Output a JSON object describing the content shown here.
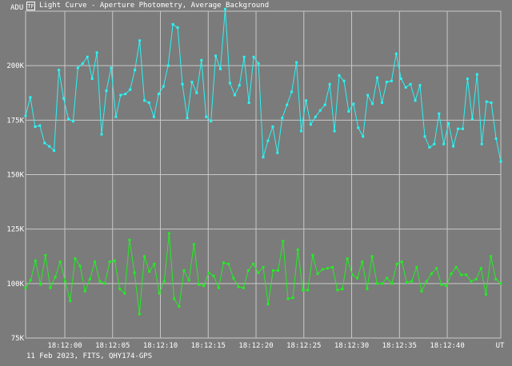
{
  "window": {
    "title": "Light Curve - Aperture Photometry, Average Background",
    "icon": "app-icon"
  },
  "footer": {
    "caption": "11 Feb 2023, FITS, QHY174-GPS"
  },
  "colors": {
    "background": "#7b7b7b",
    "grid": "#c8c8c8",
    "series1": "#29f5f5",
    "series2": "#22ee22"
  },
  "chart_data": {
    "type": "line",
    "ylabel": "ADU",
    "xlabel": "UT",
    "ylim": [
      75000,
      225000
    ],
    "y_ticks": [
      {
        "value": 75000,
        "label": "75K"
      },
      {
        "value": 100000,
        "label": "100K"
      },
      {
        "value": 125000,
        "label": "125K"
      },
      {
        "value": 150000,
        "label": "150K"
      },
      {
        "value": 175000,
        "label": "175K"
      },
      {
        "value": 200000,
        "label": "200K"
      }
    ],
    "xlim": [
      "18:11:55.9",
      "18:12:45.6"
    ],
    "x_ticks": [
      "18:12:00",
      "18:12:05",
      "18:12:10",
      "18:12:15",
      "18:12:20",
      "18:12:25",
      "18:12:30",
      "18:12:35",
      "18:12:40"
    ],
    "grid": true,
    "legend": "none",
    "series": [
      {
        "values": [
          177000,
          185500,
          172000,
          172500,
          164500,
          163000,
          161000,
          198000,
          185000,
          175500,
          174500,
          199000,
          201000,
          204000,
          194000,
          206000,
          168500,
          188500,
          199000,
          176500,
          186500,
          187000,
          189000,
          198000,
          211500,
          184000,
          183000,
          176500,
          187000,
          190500,
          200000,
          219000,
          217500,
          191500,
          176000,
          192500,
          187500,
          202500,
          176500,
          174500,
          204500,
          198500,
          226000,
          192000,
          186500,
          191000,
          204000,
          183000,
          204000,
          201000,
          158000,
          165500,
          172000,
          160000,
          176000,
          182000,
          188000,
          201500,
          170000,
          184000,
          173000,
          176500,
          179500,
          182000,
          191500,
          170000,
          195500,
          193000,
          179000,
          182500,
          171500,
          167500,
          186500,
          182500,
          194500,
          183000,
          192500,
          193000,
          205500,
          194000,
          190000,
          191500,
          184000,
          191000,
          167500,
          162500,
          164000,
          178000,
          164000,
          173500,
          163000,
          171000,
          171000,
          194000,
          175500,
          196000,
          164000,
          183500,
          183000,
          166500,
          156000
        ]
      },
      {
        "values": [
          98000,
          101500,
          110500,
          99500,
          113000,
          98000,
          103000,
          110000,
          101000,
          92000,
          111500,
          108000,
          96500,
          102000,
          110000,
          101000,
          100000,
          110000,
          110500,
          97500,
          95500,
          120000,
          105000,
          86000,
          112500,
          105500,
          109000,
          95500,
          101000,
          123000,
          93000,
          89500,
          106000,
          101500,
          118000,
          99500,
          99000,
          105000,
          103500,
          98000,
          109500,
          109000,
          102500,
          98500,
          98000,
          106000,
          109000,
          105000,
          107500,
          90500,
          106000,
          106000,
          119500,
          93000,
          93500,
          115500,
          97000,
          97000,
          113000,
          104500,
          106500,
          107000,
          107500,
          97000,
          97500,
          111500,
          104000,
          102500,
          110000,
          97500,
          112500,
          100000,
          100000,
          102500,
          100000,
          109000,
          110000,
          100500,
          101000,
          107500,
          96500,
          101000,
          104500,
          107000,
          99500,
          99000,
          104500,
          107500,
          104000,
          104000,
          101000,
          102000,
          107000,
          95000,
          112500,
          102000,
          100000
        ]
      }
    ]
  }
}
